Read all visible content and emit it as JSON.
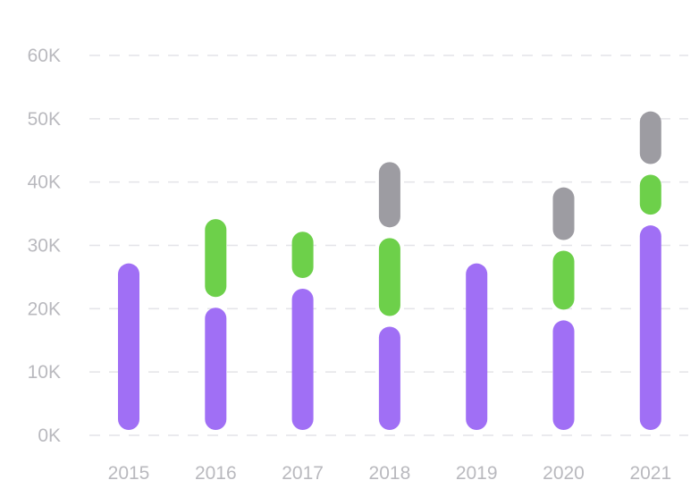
{
  "chart_data": {
    "type": "bar",
    "stacked": true,
    "orientation": "vertical",
    "categories": [
      "2015",
      "2016",
      "2017",
      "2018",
      "2019",
      "2020",
      "2021"
    ],
    "series": [
      {
        "values": [
          28000,
          21000,
          24000,
          18000,
          28000,
          19000,
          34000
        ],
        "color": "#a06ff5"
      },
      {
        "values": [
          0,
          14000,
          9000,
          14000,
          0,
          11000,
          8000
        ],
        "color": "#6dd04a"
      },
      {
        "values": [
          0,
          0,
          0,
          12000,
          0,
          10000,
          10000
        ],
        "color": "#9d9ca2"
      }
    ],
    "y_ticks": [
      "0K",
      "10K",
      "20K",
      "30K",
      "40K",
      "50K",
      "60K"
    ],
    "ylim": [
      0,
      60000
    ],
    "title": "",
    "xlabel": "",
    "ylabel": "",
    "grid": true,
    "legend": "none"
  }
}
